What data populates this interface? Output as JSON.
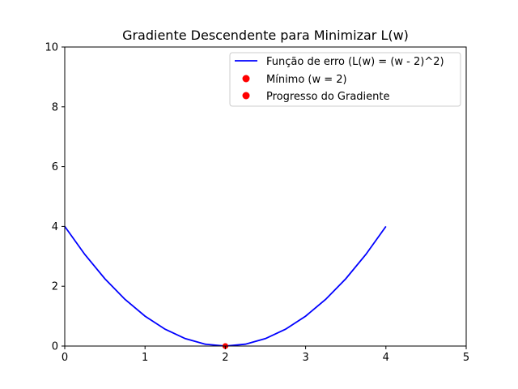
{
  "chart_data": {
    "type": "line",
    "title": "Gradiente Descendente para Minimizar L(w)",
    "xlabel": "",
    "ylabel": "",
    "xlim": [
      0,
      5
    ],
    "ylim": [
      0,
      10
    ],
    "x_ticks": [
      "0",
      "1",
      "2",
      "3",
      "4",
      "5"
    ],
    "y_ticks": [
      "0",
      "2",
      "4",
      "6",
      "8",
      "10"
    ],
    "grid": false,
    "legend_position": "top-right",
    "series": [
      {
        "name": "Função de erro (L(w) = (w - 2)^2)",
        "kind": "line",
        "color": "#0000ff",
        "x": [
          0,
          0.25,
          0.5,
          0.75,
          1,
          1.25,
          1.5,
          1.75,
          2,
          2.25,
          2.5,
          2.75,
          3,
          3.25,
          3.5,
          3.75,
          4
        ],
        "y": [
          4,
          3.0625,
          2.25,
          1.5625,
          1,
          0.5625,
          0.25,
          0.0625,
          0,
          0.0625,
          0.25,
          0.5625,
          1,
          1.5625,
          2.25,
          3.0625,
          4
        ]
      },
      {
        "name": "Mínimo (w = 2)",
        "kind": "scatter",
        "color": "#ff0000",
        "x": [
          2
        ],
        "y": [
          0
        ]
      },
      {
        "name": "Progresso do Gradiente",
        "kind": "scatter",
        "color": "#ff0000",
        "x": [
          2
        ],
        "y": [
          0
        ]
      }
    ]
  }
}
